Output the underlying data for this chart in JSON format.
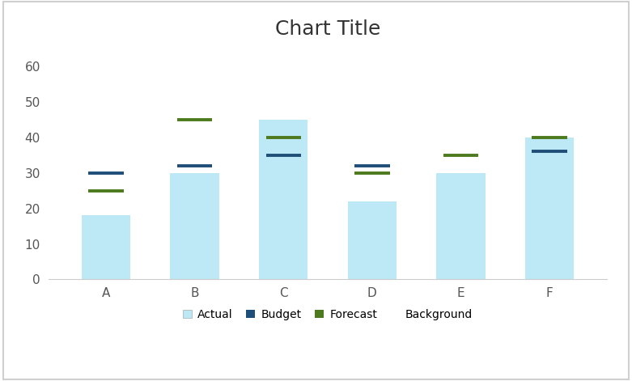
{
  "title": "Chart Title",
  "categories": [
    "A",
    "B",
    "C",
    "D",
    "E",
    "F"
  ],
  "actual": [
    18,
    30,
    45,
    22,
    30,
    40
  ],
  "budget": [
    30,
    32,
    35,
    32,
    null,
    36
  ],
  "forecast": [
    25,
    45,
    40,
    30,
    35,
    40
  ],
  "actual_color": "#bde8f5",
  "budget_color": "#1f4e79",
  "forecast_color": "#4e7a1e",
  "background_color": "#ffffff",
  "frame_color": "#d0d0d0",
  "ylim": [
    0,
    65
  ],
  "yticks": [
    0,
    10,
    20,
    30,
    40,
    50,
    60
  ],
  "title_fontsize": 18,
  "tick_fontsize": 11,
  "legend_fontsize": 10,
  "bar_width": 0.55,
  "line_thickness": 2.8
}
